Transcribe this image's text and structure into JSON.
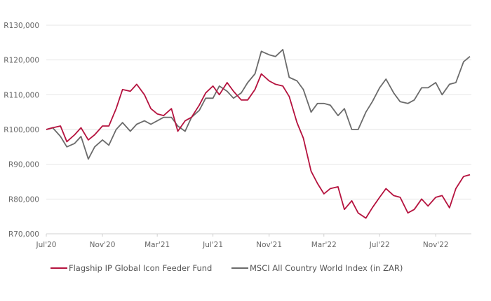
{
  "chart_data": {
    "type": "line",
    "title": "",
    "xlabel": "",
    "ylabel": "",
    "ylim": [
      70000,
      130000
    ],
    "yticks": [
      70000,
      80000,
      90000,
      100000,
      110000,
      120000,
      130000
    ],
    "ytick_labels": [
      "R70,000",
      "R80,000",
      "R90,000",
      "R100,000",
      "R110,000",
      "R120,000",
      "R130,000"
    ],
    "xticks": [
      "2020-07-01",
      "2020-11-01",
      "2021-03-01",
      "2021-07-01",
      "2021-11-01",
      "2022-03-01",
      "2022-07-01",
      "2022-11-01"
    ],
    "xtick_labels": [
      "Jul'20",
      "Nov'20",
      "Mar'21",
      "Jul'21",
      "Nov'21",
      "Mar'22",
      "Jul'22",
      "Nov'22"
    ],
    "xlim": [
      "2020-07-01",
      "2023-01-18"
    ],
    "grid": "horizontal",
    "legend_placement": "bottom",
    "x": [
      "2020-07-01",
      "2020-07-15",
      "2020-08-01",
      "2020-08-15",
      "2020-09-01",
      "2020-09-15",
      "2020-10-01",
      "2020-10-15",
      "2020-11-01",
      "2020-11-15",
      "2020-12-01",
      "2020-12-15",
      "2021-01-01",
      "2021-01-15",
      "2021-02-01",
      "2021-02-15",
      "2021-03-01",
      "2021-03-15",
      "2021-04-01",
      "2021-04-15",
      "2021-05-01",
      "2021-05-15",
      "2021-06-01",
      "2021-06-15",
      "2021-07-01",
      "2021-07-15",
      "2021-08-01",
      "2021-08-15",
      "2021-09-01",
      "2021-09-15",
      "2021-10-01",
      "2021-10-15",
      "2021-11-01",
      "2021-11-15",
      "2021-12-01",
      "2021-12-15",
      "2022-01-01",
      "2022-01-15",
      "2022-02-01",
      "2022-02-15",
      "2022-03-01",
      "2022-03-15",
      "2022-04-01",
      "2022-04-15",
      "2022-05-01",
      "2022-05-15",
      "2022-06-01",
      "2022-06-15",
      "2022-07-01",
      "2022-07-15",
      "2022-08-01",
      "2022-08-15",
      "2022-09-01",
      "2022-09-15",
      "2022-10-01",
      "2022-10-15",
      "2022-11-01",
      "2022-11-15",
      "2022-12-01",
      "2022-12-15",
      "2023-01-01",
      "2023-01-15"
    ],
    "series": [
      {
        "name": "Flagship IP Global Icon Feeder Fund",
        "color": "#b5123e",
        "values": [
          100000,
          100500,
          101000,
          96500,
          98500,
          100500,
          97000,
          98500,
          101000,
          101000,
          106000,
          111500,
          111000,
          113000,
          110000,
          106000,
          104500,
          104000,
          106000,
          99500,
          102500,
          103500,
          107000,
          110500,
          112500,
          110000,
          113500,
          111000,
          108500,
          108500,
          111500,
          116000,
          114000,
          113000,
          112500,
          109500,
          102000,
          97500,
          88000,
          84500,
          81500,
          83000,
          83500,
          77000,
          79500,
          76000,
          74500,
          77500,
          80500,
          83000,
          81000,
          80500,
          76000,
          77000,
          80000,
          78000,
          80500,
          81000,
          77500,
          83000,
          86500,
          87000
        ]
      },
      {
        "name": "MSCI All Country World Index (in ZAR)",
        "color": "#6b6b6b",
        "values": [
          100000,
          100500,
          98000,
          95000,
          96000,
          98000,
          91500,
          95000,
          97000,
          95500,
          100000,
          102000,
          99500,
          101500,
          102500,
          101500,
          102500,
          103500,
          103500,
          101000,
          99500,
          103500,
          105500,
          109000,
          109000,
          112500,
          111000,
          109000,
          110500,
          113500,
          116000,
          122500,
          121500,
          121000,
          123000,
          115000,
          114000,
          111500,
          105000,
          107500,
          107500,
          107000,
          104000,
          106000,
          100000,
          100000,
          105000,
          108000,
          112000,
          114500,
          110500,
          108000,
          107500,
          108500,
          112000,
          112000,
          113500,
          110000,
          113000,
          113500,
          119500,
          121000
        ]
      }
    ]
  }
}
